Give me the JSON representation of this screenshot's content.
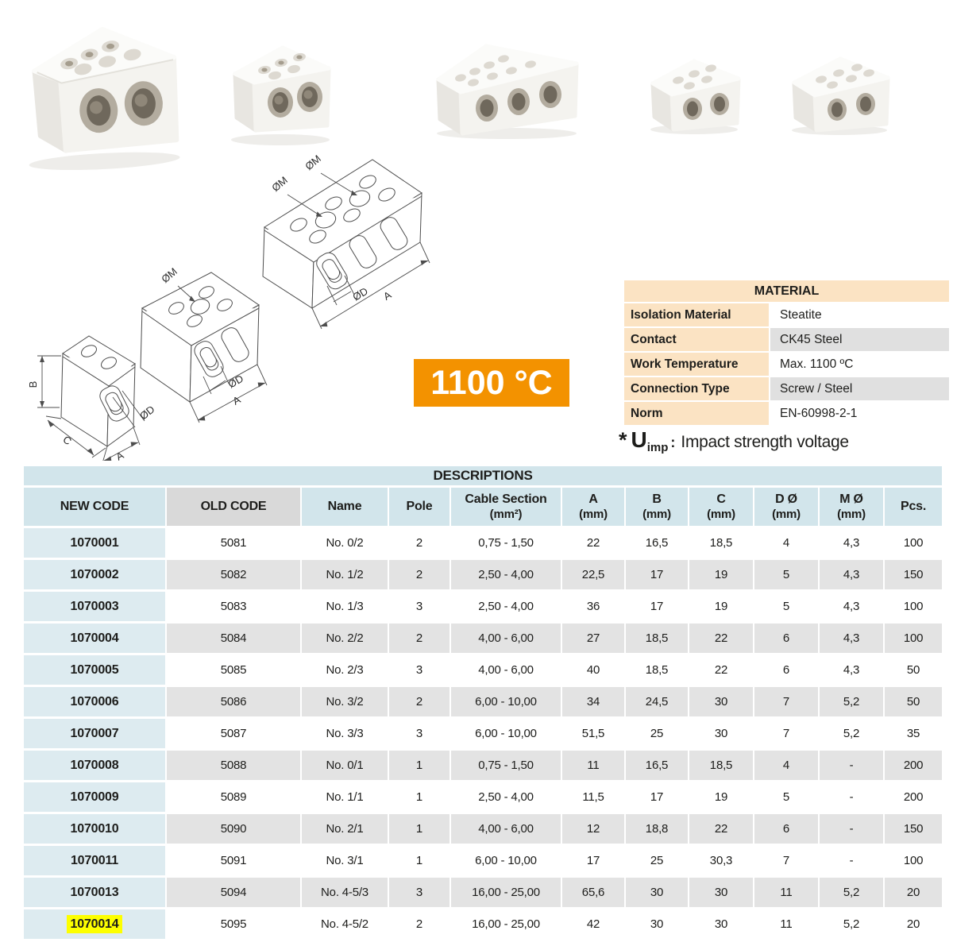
{
  "temperature_badge": "1100 °C",
  "dimension_labels": {
    "m": "ØM",
    "d": "ØD",
    "a": "A",
    "b": "B",
    "c": "C"
  },
  "material_table": {
    "title": "MATERIAL",
    "rows": [
      {
        "label": "Isolation Material",
        "value": "Steatite"
      },
      {
        "label": "Contact",
        "value": "CK45 Steel"
      },
      {
        "label": "Work Temperature",
        "value": "Max. 1100 ºC"
      },
      {
        "label": "Connection Type",
        "value": "Screw / Steel"
      },
      {
        "label": "Norm",
        "value": "EN-60998-2-1"
      }
    ]
  },
  "uimp_note": {
    "star": "*",
    "symbol": "U",
    "subscript": "imp",
    "colon": ":",
    "text": "Impact strength voltage"
  },
  "descriptions_table": {
    "title": "DESCRIPTIONS",
    "columns": [
      {
        "label": "NEW CODE",
        "sub": ""
      },
      {
        "label": "OLD CODE",
        "sub": ""
      },
      {
        "label": "Name",
        "sub": ""
      },
      {
        "label": "Pole",
        "sub": ""
      },
      {
        "label": "Cable Section",
        "sub": "(mm²)"
      },
      {
        "label": "A",
        "sub": "(mm)"
      },
      {
        "label": "B",
        "sub": "(mm)"
      },
      {
        "label": "C",
        "sub": "(mm)"
      },
      {
        "label": "D Ø",
        "sub": "(mm)"
      },
      {
        "label": "M Ø",
        "sub": "(mm)"
      },
      {
        "label": "Pcs.",
        "sub": ""
      }
    ],
    "highlight_code": "1070014",
    "rows": [
      [
        "1070001",
        "5081",
        "No. 0/2",
        "2",
        "0,75 - 1,50",
        "22",
        "16,5",
        "18,5",
        "4",
        "4,3",
        "100"
      ],
      [
        "1070002",
        "5082",
        "No. 1/2",
        "2",
        "2,50 - 4,00",
        "22,5",
        "17",
        "19",
        "5",
        "4,3",
        "150"
      ],
      [
        "1070003",
        "5083",
        "No. 1/3",
        "3",
        "2,50 - 4,00",
        "36",
        "17",
        "19",
        "5",
        "4,3",
        "100"
      ],
      [
        "1070004",
        "5084",
        "No. 2/2",
        "2",
        "4,00 - 6,00",
        "27",
        "18,5",
        "22",
        "6",
        "4,3",
        "100"
      ],
      [
        "1070005",
        "5085",
        "No. 2/3",
        "3",
        "4,00 - 6,00",
        "40",
        "18,5",
        "22",
        "6",
        "4,3",
        "50"
      ],
      [
        "1070006",
        "5086",
        "No. 3/2",
        "2",
        "6,00 - 10,00",
        "34",
        "24,5",
        "30",
        "7",
        "5,2",
        "50"
      ],
      [
        "1070007",
        "5087",
        "No. 3/3",
        "3",
        "6,00 - 10,00",
        "51,5",
        "25",
        "30",
        "7",
        "5,2",
        "35"
      ],
      [
        "1070008",
        "5088",
        "No. 0/1",
        "1",
        "0,75 - 1,50",
        "11",
        "16,5",
        "18,5",
        "4",
        "-",
        "200"
      ],
      [
        "1070009",
        "5089",
        "No. 1/1",
        "1",
        "2,50 - 4,00",
        "11,5",
        "17",
        "19",
        "5",
        "-",
        "200"
      ],
      [
        "1070010",
        "5090",
        "No. 2/1",
        "1",
        "4,00 - 6,00",
        "12",
        "18,8",
        "22",
        "6",
        "-",
        "150"
      ],
      [
        "1070011",
        "5091",
        "No. 3/1",
        "1",
        "6,00 - 10,00",
        "17",
        "25",
        "30,3",
        "7",
        "-",
        "100"
      ],
      [
        "1070013",
        "5094",
        "No. 4-5/3",
        "3",
        "16,00 - 25,00",
        "65,6",
        "30",
        "30",
        "11",
        "5,2",
        "20"
      ],
      [
        "1070014",
        "5095",
        "No. 4-5/2",
        "2",
        "16,00 - 25,00",
        "42",
        "30",
        "30",
        "11",
        "5,2",
        "20"
      ]
    ]
  },
  "colors": {
    "accent_orange": "#f39200",
    "table_blue": "#d2e5eb",
    "first_column_blue": "#ddebf0",
    "row_gray": "#e3e3e3",
    "old_code_gray": "#d9d9d9",
    "material_peach": "#fbe3c3",
    "material_value_gray": "#e0e0e0",
    "highlight_yellow": "#fdff00"
  },
  "photos": [
    {
      "name": "ceramic-terminal-block-2pole-large"
    },
    {
      "name": "ceramic-terminal-block-2pole-medium"
    },
    {
      "name": "ceramic-terminal-block-3pole"
    },
    {
      "name": "ceramic-terminal-block-2pole-small"
    },
    {
      "name": "ceramic-terminal-block-2pole-small"
    }
  ]
}
